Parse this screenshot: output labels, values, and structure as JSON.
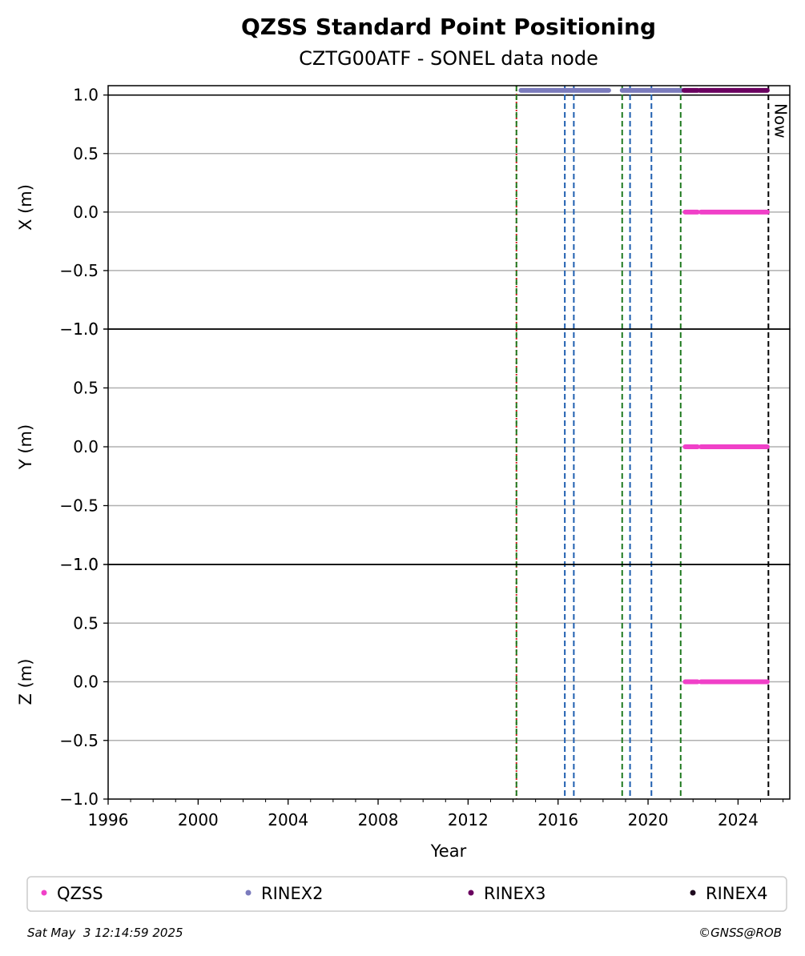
{
  "chart_data": {
    "type": "scatter",
    "title": "QZSS Standard Point Positioning",
    "subtitle": "CZTG00ATF - SONEL data node",
    "xlabel": "Year",
    "xlim": [
      1996,
      2026.3
    ],
    "x_ticks": [
      "1996",
      "2000",
      "2004",
      "2008",
      "2012",
      "2016",
      "2020",
      "2024"
    ],
    "grid": "horizontal",
    "panels": [
      {
        "ylabel": "X (m)",
        "ylim": [
          -1.0,
          1.08
        ],
        "y_ticks": [
          "−1.0",
          "−0.5",
          "0.0",
          "0.5",
          "1.0"
        ]
      },
      {
        "ylabel": "Y (m)",
        "ylim": [
          -1.0,
          1.0
        ],
        "y_ticks": [
          "−1.0",
          "−0.5",
          "0.0",
          "0.5",
          "1.0"
        ]
      },
      {
        "ylabel": "Z (m)",
        "ylim": [
          -1.0,
          1.0
        ],
        "y_ticks": [
          "−1.0",
          "−0.5",
          "0.0",
          "0.5",
          "1.0"
        ]
      }
    ],
    "series": [
      {
        "name": "QZSS",
        "color": "#f040c8",
        "segments": [
          [
            2021.65,
            2022.2
          ],
          [
            2022.35,
            2025.3
          ]
        ],
        "panels_y": [
          0.0,
          0.0,
          0.0
        ]
      },
      {
        "name": "RINEX2",
        "color": "#7b7bbd",
        "segments": [
          [
            2014.35,
            2018.25
          ],
          [
            2018.85,
            2021.5
          ]
        ],
        "y": 1.04
      },
      {
        "name": "RINEX3",
        "color": "#6a005f",
        "segments": [
          [
            2021.6,
            2022.2
          ],
          [
            2022.3,
            2025.3
          ]
        ],
        "y": 1.04
      },
      {
        "name": "RINEX4",
        "color": "#1e0a1e",
        "segments": []
      }
    ],
    "vlines": [
      {
        "x": 2014.15,
        "color": "#d62020",
        "style": "dotted"
      },
      {
        "x": 2014.15,
        "color": "#1f7a1f",
        "style": "dashed"
      },
      {
        "x": 2016.3,
        "color": "#1f5fb0",
        "style": "dashed"
      },
      {
        "x": 2016.7,
        "color": "#1f5fb0",
        "style": "dashed"
      },
      {
        "x": 2018.85,
        "color": "#1f7a1f",
        "style": "dashed"
      },
      {
        "x": 2019.2,
        "color": "#1f5fb0",
        "style": "dashed"
      },
      {
        "x": 2020.15,
        "color": "#1f5fb0",
        "style": "dashed"
      },
      {
        "x": 2021.45,
        "color": "#1f7a1f",
        "style": "dashed"
      },
      {
        "x": 2025.35,
        "color": "#000000",
        "style": "dashed",
        "label": "Now"
      }
    ],
    "legend": [
      "QZSS",
      "RINEX2",
      "RINEX3",
      "RINEX4"
    ],
    "legend_placement": "bottom"
  },
  "footer": {
    "timestamp": "Sat May  3 12:14:59 2025",
    "credit": "©GNSS@ROB"
  }
}
